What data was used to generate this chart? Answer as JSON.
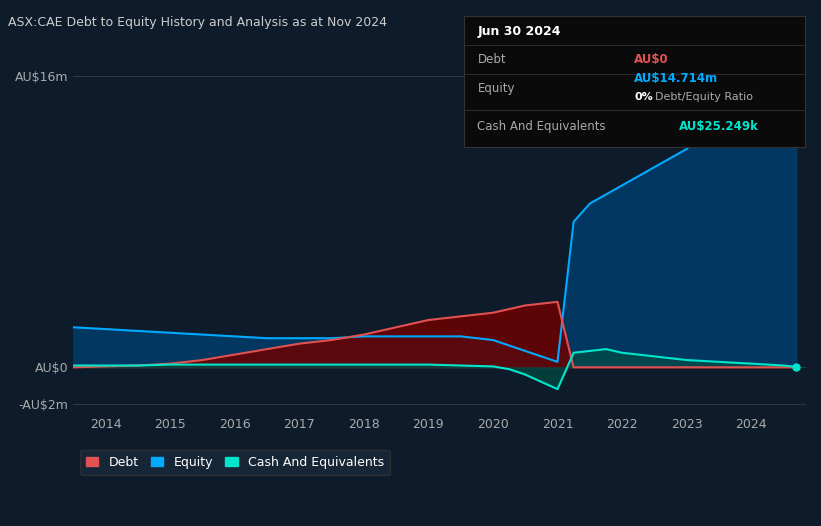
{
  "background_color": "#0d1b2a",
  "plot_bg_color": "#0d1b2a",
  "title": "ASX:CAE Debt to Equity History and Analysis as at Nov 2024",
  "ylim": [
    -2000000,
    18000000
  ],
  "yticks": [
    -2000000,
    0,
    16000000
  ],
  "ytick_labels": [
    "-AU$2m",
    "AU$0",
    "AU$16m"
  ],
  "xtick_labels": [
    "2014",
    "2015",
    "2016",
    "2017",
    "2018",
    "2019",
    "2020",
    "2021",
    "2022",
    "2023",
    "2024"
  ],
  "legend_items": [
    "Debt",
    "Equity",
    "Cash And Equivalents"
  ],
  "legend_colors": [
    "#e05252",
    "#00aaff",
    "#00e5cc"
  ],
  "info_box": {
    "title": "Jun 30 2024",
    "rows": [
      {
        "label": "Debt",
        "value": "AU$0",
        "value_color": "#e05252"
      },
      {
        "label": "Equity",
        "value": "AU$14.714m",
        "value_color": "#00aaff",
        "sub_label": "0% Debt/Equity Ratio",
        "sub_color": "#ffffff"
      },
      {
        "label": "Cash And Equivalents",
        "value": "AU$25.249k",
        "value_color": "#00e5cc"
      }
    ]
  },
  "equity": {
    "color": "#00aaff",
    "fill_color": "#003d6b",
    "years": [
      2013.5,
      2014.0,
      2014.5,
      2015.0,
      2015.5,
      2016.0,
      2016.5,
      2017.0,
      2017.5,
      2018.0,
      2018.5,
      2019.0,
      2019.5,
      2020.0,
      2020.25,
      2020.5,
      2020.75,
      2021.0,
      2021.25,
      2021.5,
      2021.75,
      2022.0,
      2022.25,
      2022.5,
      2022.75,
      2023.0,
      2023.25,
      2023.5,
      2023.75,
      2024.0,
      2024.25,
      2024.5,
      2024.7
    ],
    "values": [
      2200000,
      2100000,
      2000000,
      1900000,
      1800000,
      1700000,
      1600000,
      1600000,
      1600000,
      1700000,
      1700000,
      1700000,
      1700000,
      1500000,
      1200000,
      900000,
      600000,
      300000,
      8000000,
      9000000,
      9500000,
      10000000,
      10500000,
      11000000,
      11500000,
      12000000,
      13000000,
      14000000,
      14500000,
      14714000,
      14714000,
      14714000,
      14714000
    ]
  },
  "debt": {
    "color": "#e05252",
    "fill_color": "#6b0000",
    "years": [
      2013.5,
      2014.0,
      2014.5,
      2015.0,
      2015.5,
      2016.0,
      2016.5,
      2017.0,
      2017.5,
      2018.0,
      2018.5,
      2019.0,
      2019.5,
      2020.0,
      2020.25,
      2020.5,
      2020.75,
      2021.0,
      2021.25,
      2021.5,
      2022.0,
      2022.5,
      2023.0,
      2023.5,
      2024.0,
      2024.5,
      2024.7
    ],
    "values": [
      0,
      50000,
      100000,
      200000,
      400000,
      700000,
      1000000,
      1300000,
      1500000,
      1800000,
      2200000,
      2600000,
      2800000,
      3000000,
      3200000,
      3400000,
      3500000,
      3600000,
      0,
      0,
      0,
      0,
      0,
      0,
      0,
      0,
      0
    ]
  },
  "cash": {
    "color": "#00e5cc",
    "fill_color": "#004d44",
    "years": [
      2013.5,
      2014.0,
      2014.5,
      2015.0,
      2015.5,
      2016.0,
      2016.5,
      2017.0,
      2017.5,
      2018.0,
      2018.5,
      2019.0,
      2019.5,
      2020.0,
      2020.25,
      2020.5,
      2020.75,
      2021.0,
      2021.25,
      2021.5,
      2021.75,
      2022.0,
      2022.25,
      2022.5,
      2022.75,
      2023.0,
      2023.5,
      2024.0,
      2024.5,
      2024.7
    ],
    "values": [
      100000,
      100000,
      100000,
      150000,
      150000,
      150000,
      150000,
      150000,
      150000,
      150000,
      150000,
      150000,
      100000,
      50000,
      -100000,
      -400000,
      -800000,
      -1200000,
      800000,
      900000,
      1000000,
      800000,
      700000,
      600000,
      500000,
      400000,
      300000,
      200000,
      100000,
      25249
    ]
  }
}
